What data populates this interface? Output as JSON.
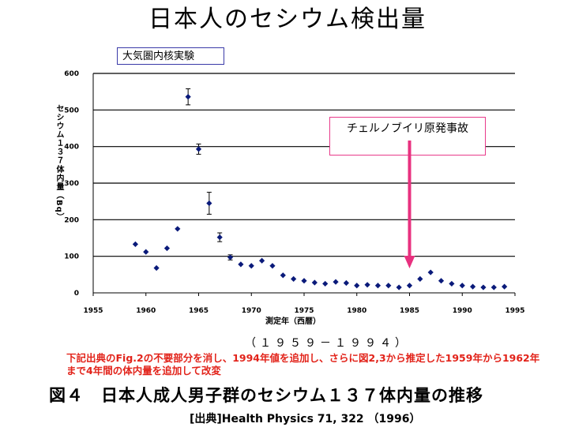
{
  "title": "日本人のセシウム検出量",
  "annotations": {
    "test": "大気圏内核実験",
    "accident": "チェルノブイリ原発事故"
  },
  "chart_data": {
    "type": "scatter",
    "xlabel": "測定年（西暦）",
    "ylabel": "セシウム１３７体内量（Bq）",
    "xlim": [
      1955,
      1995
    ],
    "ylim": [
      0,
      600
    ],
    "xticks": [
      1955,
      1960,
      1965,
      1970,
      1975,
      1980,
      1985,
      1990,
      1995
    ],
    "yticks": [
      0,
      100,
      200,
      300,
      400,
      500,
      600
    ],
    "grid": "horizontal",
    "points": [
      {
        "x": 1959,
        "y": 133
      },
      {
        "x": 1960,
        "y": 112
      },
      {
        "x": 1961,
        "y": 68
      },
      {
        "x": 1962,
        "y": 122
      },
      {
        "x": 1963,
        "y": 175
      },
      {
        "x": 1964,
        "y": 536,
        "err": 22
      },
      {
        "x": 1965,
        "y": 393,
        "err": 14
      },
      {
        "x": 1966,
        "y": 245,
        "err": 30
      },
      {
        "x": 1967,
        "y": 152,
        "err": 12
      },
      {
        "x": 1968,
        "y": 97,
        "err": 7
      },
      {
        "x": 1969,
        "y": 78
      },
      {
        "x": 1970,
        "y": 74
      },
      {
        "x": 1971,
        "y": 88
      },
      {
        "x": 1972,
        "y": 74
      },
      {
        "x": 1973,
        "y": 48
      },
      {
        "x": 1974,
        "y": 38
      },
      {
        "x": 1975,
        "y": 33
      },
      {
        "x": 1976,
        "y": 28
      },
      {
        "x": 1977,
        "y": 25
      },
      {
        "x": 1978,
        "y": 30
      },
      {
        "x": 1979,
        "y": 27
      },
      {
        "x": 1980,
        "y": 20
      },
      {
        "x": 1981,
        "y": 22
      },
      {
        "x": 1982,
        "y": 20
      },
      {
        "x": 1983,
        "y": 20
      },
      {
        "x": 1984,
        "y": 15
      },
      {
        "x": 1985,
        "y": 20
      },
      {
        "x": 1986,
        "y": 38
      },
      {
        "x": 1987,
        "y": 56
      },
      {
        "x": 1988,
        "y": 33
      },
      {
        "x": 1989,
        "y": 25
      },
      {
        "x": 1990,
        "y": 20
      },
      {
        "x": 1991,
        "y": 17
      },
      {
        "x": 1992,
        "y": 15
      },
      {
        "x": 1993,
        "y": 15
      },
      {
        "x": 1994,
        "y": 17
      }
    ],
    "arrow_year": 1985,
    "marker_color": "#0a1a7a",
    "arrow_color": "#e8317f"
  },
  "period": "（１９５９－１９９４）",
  "note": "下記出典のFig.2の不要部分を消し、1994年値を追加し、さらに図2,3から推定した1959年から1962年まで4年間の体内量を追加して改変",
  "caption": "図４　日本人成人男子群のセシウム１３７体内量の推移",
  "source": "[出典]Health Physics 71, 322 （1996）"
}
